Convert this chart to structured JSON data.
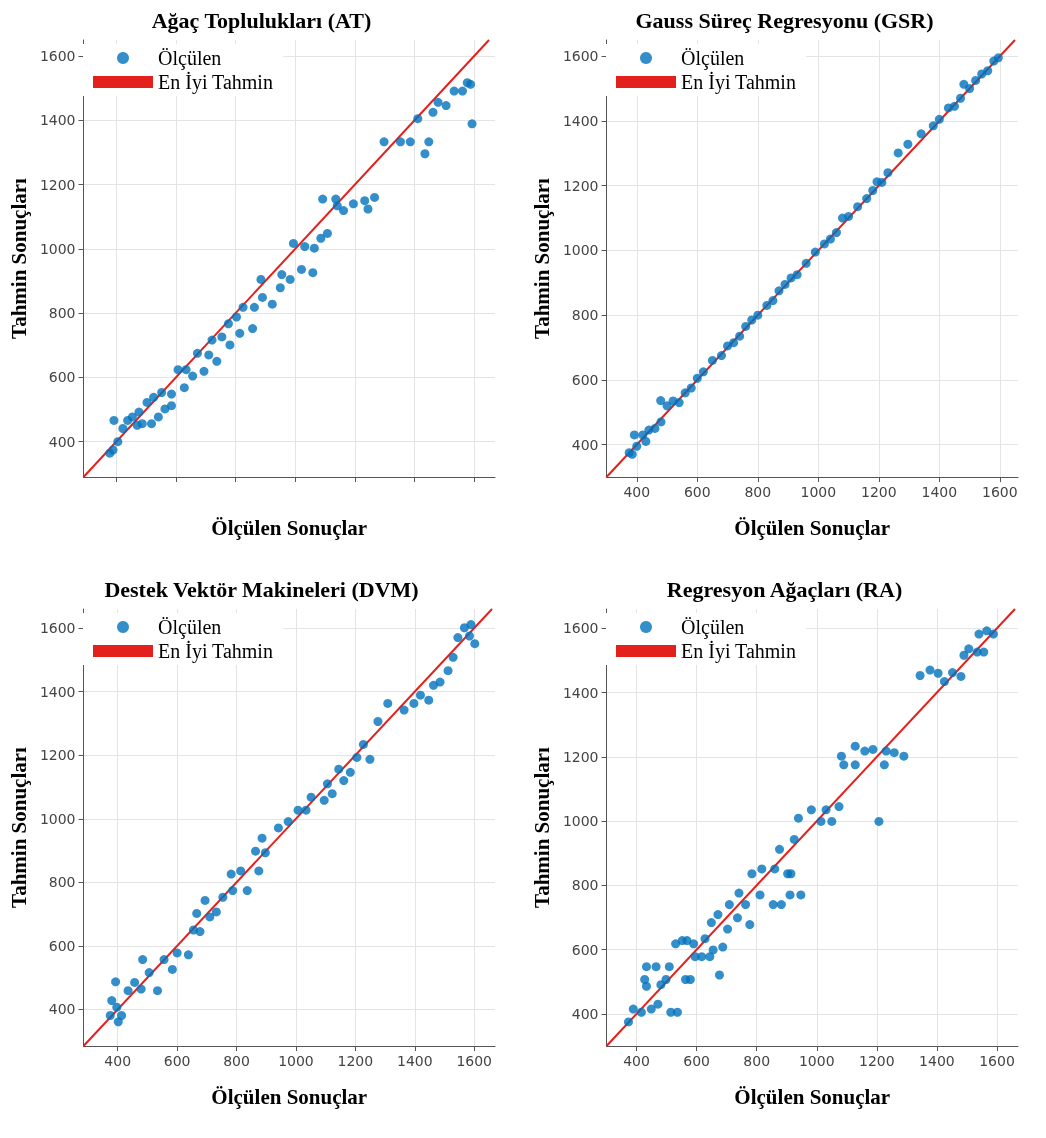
{
  "chart_data": [
    {
      "type": "scatter",
      "title": "Ağaç Toplulukları (AT)",
      "xlabel": "Ölçülen Sonuçlar",
      "ylabel": "Tahmin Sonuçları",
      "xlim": [
        290,
        1670
      ],
      "ylim": [
        290,
        1650
      ],
      "xticks": [
        400,
        600,
        800,
        1000,
        1200,
        1400,
        1600
      ],
      "yticks": [
        400,
        600,
        800,
        1000,
        1200,
        1400,
        1600
      ],
      "grid": true,
      "legend": "top left",
      "tick_labels": "y",
      "series": [
        {
          "name": "Ölçülen",
          "marker": "circle",
          "color": "#0072bd",
          "x": [
            378,
            389,
            392,
            405,
            422,
            438,
            454,
            470,
            487,
            476,
            503,
            518,
            525,
            541,
            552,
            563,
            585,
            585,
            607,
            628,
            634,
            656,
            672,
            694,
            710,
            737,
            721,
            754,
            781,
            776,
            803,
            814,
            825,
            857,
            863,
            885,
            890,
            923,
            950,
            955,
            983,
            994,
            1021,
            1032,
            1059,
            1064,
            1086,
            1108,
            1092,
            1136,
            1141,
            1162,
            1195,
            1233,
            1244,
            1266,
            1298,
            1353,
            1386,
            1411,
            1435,
            1448,
            1462,
            1479,
            1506,
            1533,
            1561,
            1577,
            1588,
            1593
          ],
          "values": [
            364,
            374,
            466,
            400,
            441,
            466,
            477,
            451,
            456,
            492,
            522,
            456,
            538,
            477,
            553,
            502,
            512,
            548,
            624,
            568,
            624,
            604,
            675,
            619,
            670,
            650,
            716,
            726,
            701,
            767,
            788,
            737,
            818,
            752,
            818,
            905,
            849,
            828,
            879,
            920,
            905,
            1017,
            936,
            1007,
            926,
            1002,
            1033,
            1048,
            1155,
            1155,
            1134,
            1119,
            1140,
            1150,
            1124,
            1160,
            1333,
            1333,
            1333,
            1405,
            1296,
            1333,
            1425,
            1456,
            1446,
            1491,
            1491,
            1517,
            1512,
            1389
          ]
        },
        {
          "name": "En İyi Tahmin",
          "type": "line",
          "marker": "none",
          "color": "#e3201b",
          "x": [
            290,
            1650
          ],
          "values": [
            290,
            1650
          ]
        }
      ]
    },
    {
      "type": "scatter",
      "title": "Gauss Süreç Regresyonu (GSR)",
      "xlabel": "Ölçülen Sonuçlar",
      "ylabel": "Tahmin Sonuçları",
      "xlim": [
        300,
        1660
      ],
      "ylim": [
        300,
        1650
      ],
      "xticks": [
        400,
        600,
        800,
        1000,
        1200,
        1400,
        1600
      ],
      "yticks": [
        400,
        600,
        800,
        1000,
        1200,
        1400,
        1600
      ],
      "grid": true,
      "legend": "top left",
      "series": [
        {
          "name": "Ölçülen",
          "marker": "circle",
          "color": "#0072bd",
          "x": [
            375,
            385,
            392,
            400,
            420,
            430,
            440,
            460,
            480,
            479,
            500,
            520,
            540,
            560,
            580,
            600,
            620,
            650,
            680,
            700,
            720,
            740,
            760,
            780,
            800,
            830,
            850,
            870,
            890,
            910,
            930,
            960,
            990,
            1020,
            1040,
            1060,
            1080,
            1100,
            1130,
            1160,
            1180,
            1194,
            1210,
            1230,
            1264,
            1296,
            1340,
            1380,
            1400,
            1430,
            1450,
            1470,
            1481,
            1500,
            1520,
            1540,
            1560,
            1580,
            1595
          ],
          "values": [
            375,
            370,
            430,
            395,
            430,
            410,
            445,
            450,
            470,
            536,
            520,
            535,
            530,
            560,
            575,
            605,
            625,
            660,
            675,
            705,
            715,
            735,
            765,
            785,
            800,
            830,
            845,
            875,
            895,
            915,
            925,
            960,
            995,
            1020,
            1035,
            1055,
            1100,
            1105,
            1135,
            1160,
            1185,
            1212,
            1210,
            1240,
            1301,
            1328,
            1360,
            1385,
            1405,
            1440,
            1445,
            1470,
            1513,
            1500,
            1525,
            1545,
            1555,
            1585,
            1595
          ]
        },
        {
          "name": "En İyi Tahmin",
          "type": "line",
          "marker": "none",
          "color": "#e3201b",
          "x": [
            300,
            1650
          ],
          "values": [
            300,
            1650
          ]
        }
      ]
    },
    {
      "type": "scatter",
      "title": "Destek Vektör Makineleri (DVM)",
      "xlabel": "Ölçülen Sonuçlar",
      "ylabel": "Tahmin Sonuçları",
      "xlim": [
        285,
        1670
      ],
      "ylim": [
        285,
        1660
      ],
      "xticks": [
        400,
        600,
        800,
        1000,
        1200,
        1400,
        1600
      ],
      "yticks": [
        400,
        600,
        800,
        1000,
        1200,
        1400,
        1600
      ],
      "grid": true,
      "legend": "top left",
      "series": [
        {
          "name": "Ölçülen",
          "marker": "circle",
          "color": "#0072bd",
          "x": [
            380,
            375,
            393,
            402,
            397,
            413,
            435,
            457,
            484,
            479,
            506,
            534,
            556,
            584,
            600,
            638,
            655,
            677,
            666,
            694,
            710,
            732,
            754,
            782,
            787,
            814,
            836,
            864,
            875,
            897,
            886,
            941,
            974,
            1007,
            1034,
            1051,
            1095,
            1106,
            1122,
            1144,
            1161,
            1183,
            1205,
            1227,
            1249,
            1276,
            1309,
            1364,
            1397,
            1419,
            1447,
            1463,
            1485,
            1512,
            1529,
            1545,
            1567,
            1589,
            1584,
            1602
          ],
          "values": [
            428,
            381,
            487,
            361,
            407,
            381,
            459,
            485,
            557,
            464,
            516,
            459,
            557,
            526,
            578,
            572,
            650,
            645,
            702,
            743,
            691,
            707,
            753,
            826,
            774,
            836,
            774,
            898,
            836,
            893,
            939,
            971,
            991,
            1027,
            1027,
            1068,
            1058,
            1110,
            1079,
            1156,
            1120,
            1146,
            1193,
            1234,
            1187,
            1306,
            1363,
            1342,
            1363,
            1389,
            1373,
            1420,
            1430,
            1466,
            1508,
            1570,
            1601,
            1611,
            1575,
            1551
          ]
        },
        {
          "name": "En İyi Tahmin",
          "type": "line",
          "marker": "none",
          "color": "#e3201b",
          "x": [
            285,
            1660
          ],
          "values": [
            285,
            1660
          ]
        }
      ]
    },
    {
      "type": "scatter",
      "title": "Regresyon Ağaçları (RA)",
      "xlabel": "Ölçülen Sonuçlar",
      "ylabel": "Tahmin Sonuçları",
      "xlim": [
        300,
        1670
      ],
      "ylim": [
        300,
        1660
      ],
      "xticks": [
        400,
        600,
        800,
        1000,
        1200,
        1400,
        1600
      ],
      "yticks": [
        400,
        600,
        800,
        1000,
        1200,
        1400,
        1600
      ],
      "grid": true,
      "legend": "top left",
      "series": [
        {
          "name": "Ölçülen",
          "marker": "circle",
          "color": "#0072bd",
          "x": [
            373,
            389,
            416,
            427,
            433,
            433,
            449,
            465,
            471,
            481,
            498,
            514,
            536,
            509,
            530,
            552,
            563,
            568,
            579,
            590,
            595,
            617,
            628,
            644,
            655,
            676,
            687,
            649,
            671,
            703,
            709,
            736,
            741,
            763,
            777,
            784,
            811,
            817,
            855,
            882,
            860,
            876,
            903,
            914,
            911,
            947,
            925,
            939,
            982,
            1014,
            1031,
            1050,
            1074,
            1082,
            1090,
            1128,
            1128,
            1160,
            1187,
            1207,
            1225,
            1231,
            1258,
            1290,
            1344,
            1377,
            1404,
            1425,
            1452,
            1480,
            1490,
            1506,
            1534,
            1556,
            1540,
            1566,
            1588
          ],
          "values": [
            375,
            415,
            405,
            507,
            547,
            486,
            415,
            547,
            430,
            491,
            507,
            405,
            405,
            547,
            618,
            628,
            507,
            628,
            507,
            618,
            578,
            578,
            634,
            578,
            599,
            521,
            608,
            684,
            709,
            664,
            740,
            699,
            776,
            740,
            678,
            836,
            770,
            851,
            740,
            740,
            851,
            912,
            836,
            836,
            770,
            770,
            943,
            1009,
            1035,
            999,
            1035,
            999,
            1045,
            1202,
            1175,
            1233,
            1175,
            1218,
            1223,
            999,
            1175,
            1218,
            1213,
            1202,
            1453,
            1470,
            1460,
            1434,
            1462,
            1450,
            1516,
            1536,
            1526,
            1526,
            1582,
            1592,
            1582
          ]
        },
        {
          "name": "En İyi Tahmin",
          "type": "line",
          "marker": "none",
          "color": "#e3201b",
          "x": [
            300,
            1660
          ],
          "values": [
            300,
            1660
          ]
        }
      ]
    }
  ]
}
